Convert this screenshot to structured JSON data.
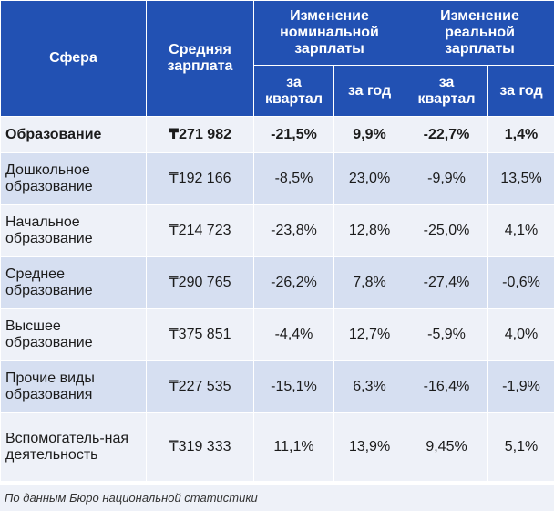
{
  "header": {
    "sphere": "Сфера",
    "avg_salary": "Средняя зарплата",
    "nominal": "Изменение номинальной зарплаты",
    "real": "Изменение реальной зарплаты",
    "quarter": "за квартал",
    "year": "за год"
  },
  "rows": [
    {
      "sphere": "Образование",
      "avg": "₸271 982",
      "nom_q": "-21,5%",
      "nom_y": "9,9%",
      "real_q": "-22,7%",
      "real_y": "1,4%"
    },
    {
      "sphere": "Дошкольное образование",
      "avg": "₸192 166",
      "nom_q": "-8,5%",
      "nom_y": "23,0%",
      "real_q": "-9,9%",
      "real_y": "13,5%"
    },
    {
      "sphere": "Начальное образование",
      "avg": "₸214 723",
      "nom_q": "-23,8%",
      "nom_y": "12,8%",
      "real_q": "-25,0%",
      "real_y": "4,1%"
    },
    {
      "sphere": "Среднее образование",
      "avg": "₸290 765",
      "nom_q": "-26,2%",
      "nom_y": "7,8%",
      "real_q": "-27,4%",
      "real_y": "-0,6%"
    },
    {
      "sphere": "Высшее образование",
      "avg": "₸375 851",
      "nom_q": "-4,4%",
      "nom_y": "12,7%",
      "real_q": "-5,9%",
      "real_y": "4,0%"
    },
    {
      "sphere": "Прочие виды образования",
      "avg": "₸227 535",
      "nom_q": "-15,1%",
      "nom_y": "6,3%",
      "real_q": "-16,4%",
      "real_y": "-1,9%"
    },
    {
      "sphere": "Вспомогатель-ная деятельность",
      "avg": "₸319 333",
      "nom_q": "11,1%",
      "nom_y": "13,9%",
      "real_q": "9,45%",
      "real_y": "5,1%"
    }
  ],
  "source": "По данным Бюро национальной статистики"
}
